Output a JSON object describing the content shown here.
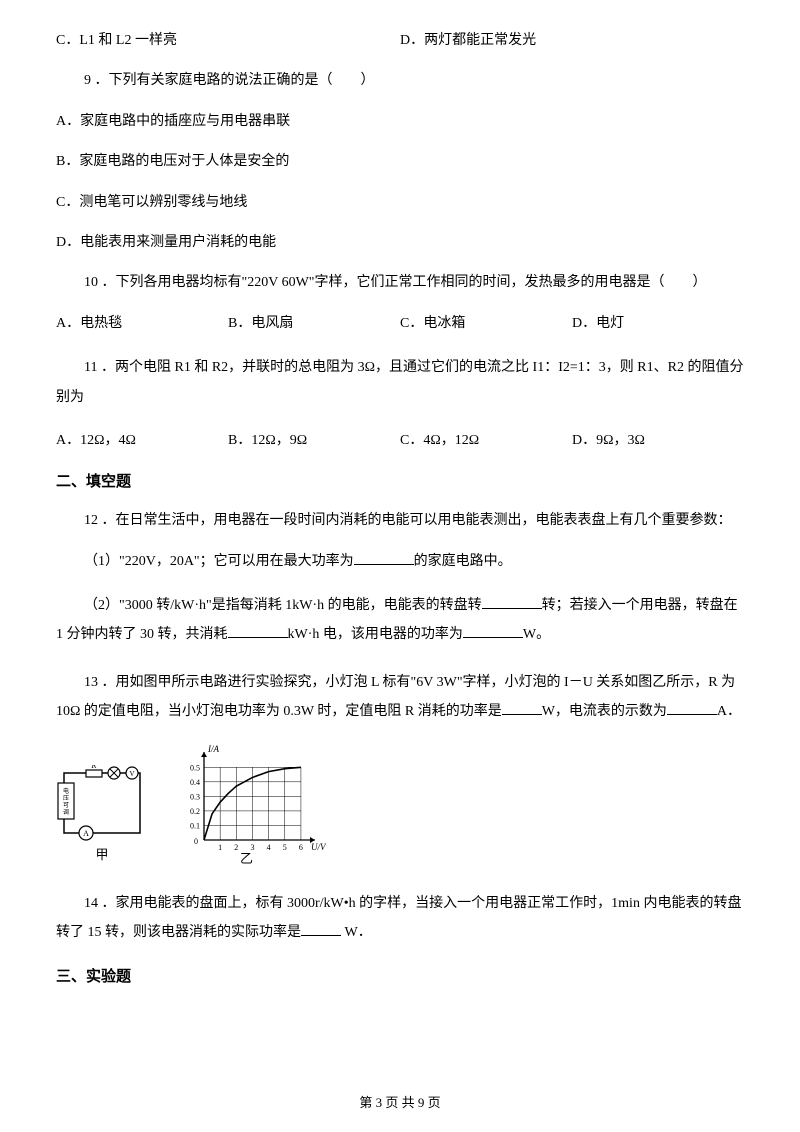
{
  "q8": {
    "c": "C．L1 和 L2 一样亮",
    "d": "D．两灯都能正常发光"
  },
  "q9": {
    "stem": "9 ．下列有关家庭电路的说法正确的是（　　）",
    "a": "A．家庭电路中的插座应与用电器串联",
    "b": "B．家庭电路的电压对于人体是安全的",
    "c": "C．测电笔可以辨别零线与地线",
    "d": "D．电能表用来测量用户消耗的电能"
  },
  "q10": {
    "stem": "10 ．下列各用电器均标有\"220V 60W\"字样，它们正常工作相同的时间，发热最多的用电器是（　　）",
    "a": "A．电热毯",
    "b": "B．电风扇",
    "c": "C．电冰箱",
    "d": "D．电灯"
  },
  "q11": {
    "stem": "11 ．两个电阻 R1 和 R2，并联时的总电阻为 3Ω，且通过它们的电流之比 I1：I2=1：3，则 R1、R2 的阻值分别为",
    "a": "A．12Ω，4Ω",
    "b": "B．12Ω，9Ω",
    "c": "C．4Ω，12Ω",
    "d": "D．9Ω，3Ω"
  },
  "sec2": "二、填空题",
  "q12": {
    "stem": "12 ．在日常生活中，用电器在一段时间内消耗的电能可以用电能表测出，电能表表盘上有几个重要参数：",
    "p1a": "（1）\"220V，20A\"；它可以用在最大功率为",
    "p1b": "的家庭电路中。",
    "p2a": "（2）\"3000 转/kW·h\"是指每消耗 1kW·h 的电能，电能表的转盘转",
    "p2b": "转；若接入一个用电器，转盘在 1 分钟内转了 30 转，共消耗",
    "p2c": "kW·h 电，该用电器的功率为",
    "p2d": "W。"
  },
  "q13": {
    "stem_a": "13 ．用如图甲所示电路进行实验探究，小灯泡 L 标有\"6V 3W\"字样，小灯泡的 I－U 关系如图乙所示，R 为 10Ω 的定值电阻，当小灯泡电功率为 0.3W 时，定值电阻 R 消耗的功率是",
    "stem_b": "W，电流表的示数为",
    "stem_c": "A．",
    "caption_left": "甲",
    "caption_right": "乙",
    "graph": {
      "ylabel": "I/A",
      "xlabel": "U/V",
      "yticks": [
        "0.1",
        "0.2",
        "0.3",
        "0.4",
        "0.5"
      ],
      "xticks": [
        "1",
        "2",
        "3",
        "4",
        "5",
        "6"
      ],
      "curve": [
        [
          0,
          0
        ],
        [
          0.5,
          0.18
        ],
        [
          1,
          0.26
        ],
        [
          1.5,
          0.32
        ],
        [
          2,
          0.37
        ],
        [
          3,
          0.43
        ],
        [
          4,
          0.47
        ],
        [
          5,
          0.49
        ],
        [
          6,
          0.5
        ]
      ],
      "xlim": [
        0,
        6.5
      ],
      "ylim": [
        0,
        0.55
      ],
      "grid": true
    }
  },
  "q14": {
    "a": "14 ．家用电能表的盘面上，标有 3000r/kW•h 的字样，当接入一个用电器正常工作时，1min 内电能表的转盘转了 15 转，则该电器消耗的实际功率是",
    "b": " W．"
  },
  "sec3": "三、实验题",
  "footer": "第 3 页 共 9 页"
}
